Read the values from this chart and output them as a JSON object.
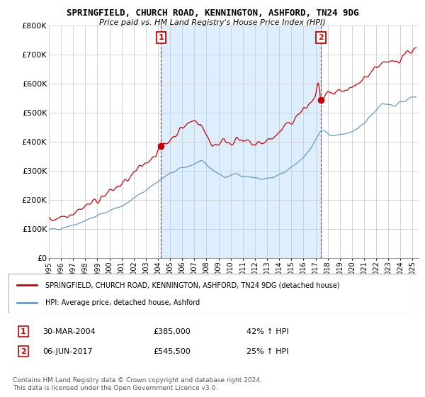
{
  "title1": "SPRINGFIELD, CHURCH ROAD, KENNINGTON, ASHFORD, TN24 9DG",
  "title2": "Price paid vs. HM Land Registry's House Price Index (HPI)",
  "xlim_start": 1995.0,
  "xlim_end": 2025.5,
  "ylim_bottom": 0,
  "ylim_top": 800000,
  "yticks": [
    0,
    100000,
    200000,
    300000,
    400000,
    500000,
    600000,
    700000,
    800000
  ],
  "ytick_labels": [
    "£0",
    "£100K",
    "£200K",
    "£300K",
    "£400K",
    "£500K",
    "£600K",
    "£700K",
    "£800K"
  ],
  "xticks": [
    1995,
    1996,
    1997,
    1998,
    1999,
    2000,
    2001,
    2002,
    2003,
    2004,
    2005,
    2006,
    2007,
    2008,
    2009,
    2010,
    2011,
    2012,
    2013,
    2014,
    2015,
    2016,
    2017,
    2018,
    2019,
    2020,
    2021,
    2022,
    2023,
    2024,
    2025
  ],
  "sale1_x": 2004.25,
  "sale1_y": 385000,
  "sale1_label": "1",
  "sale2_x": 2017.43,
  "sale2_y": 545500,
  "sale2_label": "2",
  "red_color": "#cc0000",
  "blue_color": "#6699cc",
  "shade_color": "#ddeeff",
  "legend_line1": "SPRINGFIELD, CHURCH ROAD, KENNINGTON, ASHFORD, TN24 9DG (detached house)",
  "legend_line2": "HPI: Average price, detached house, Ashford",
  "annotation1_date": "30-MAR-2004",
  "annotation1_price": "£385,000",
  "annotation1_hpi": "42% ↑ HPI",
  "annotation2_date": "06-JUN-2017",
  "annotation2_price": "£545,500",
  "annotation2_hpi": "25% ↑ HPI",
  "footer": "Contains HM Land Registry data © Crown copyright and database right 2024.\nThis data is licensed under the Open Government Licence v3.0."
}
